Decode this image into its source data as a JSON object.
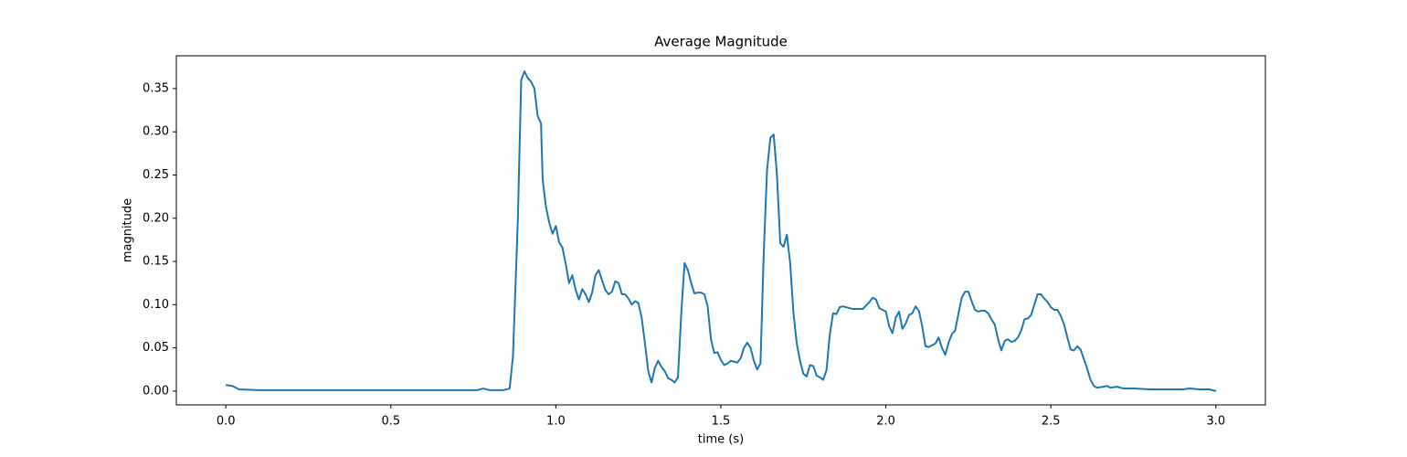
{
  "chart_data": {
    "type": "line",
    "title": "Average Magnitude",
    "x_label": "time (s)",
    "y_label": "magnitude",
    "color": "#1f77b4",
    "x": [
      0.0,
      0.02,
      0.04,
      0.1,
      0.3,
      0.5,
      0.76,
      0.78,
      0.8,
      0.84,
      0.86,
      0.87,
      0.885,
      0.895,
      0.905,
      0.915,
      0.925,
      0.935,
      0.945,
      0.955,
      0.96,
      0.97,
      0.98,
      0.99,
      1.0,
      1.01,
      1.02,
      1.03,
      1.04,
      1.05,
      1.06,
      1.07,
      1.08,
      1.09,
      1.1,
      1.11,
      1.12,
      1.13,
      1.14,
      1.15,
      1.16,
      1.17,
      1.18,
      1.19,
      1.2,
      1.21,
      1.22,
      1.23,
      1.24,
      1.25,
      1.26,
      1.27,
      1.28,
      1.29,
      1.3,
      1.31,
      1.32,
      1.33,
      1.34,
      1.35,
      1.36,
      1.37,
      1.38,
      1.39,
      1.4,
      1.41,
      1.42,
      1.43,
      1.44,
      1.45,
      1.46,
      1.47,
      1.48,
      1.49,
      1.5,
      1.51,
      1.52,
      1.53,
      1.54,
      1.55,
      1.56,
      1.57,
      1.58,
      1.59,
      1.6,
      1.61,
      1.62,
      1.63,
      1.64,
      1.65,
      1.66,
      1.67,
      1.68,
      1.69,
      1.7,
      1.71,
      1.72,
      1.73,
      1.74,
      1.75,
      1.76,
      1.77,
      1.78,
      1.79,
      1.8,
      1.81,
      1.82,
      1.83,
      1.84,
      1.85,
      1.86,
      1.87,
      1.9,
      1.93,
      1.95,
      1.96,
      1.97,
      1.98,
      2.0,
      2.01,
      2.02,
      2.03,
      2.04,
      2.05,
      2.06,
      2.07,
      2.08,
      2.09,
      2.1,
      2.11,
      2.12,
      2.13,
      2.15,
      2.16,
      2.17,
      2.18,
      2.19,
      2.2,
      2.21,
      2.22,
      2.23,
      2.24,
      2.25,
      2.26,
      2.27,
      2.28,
      2.29,
      2.3,
      2.31,
      2.32,
      2.33,
      2.34,
      2.35,
      2.36,
      2.37,
      2.38,
      2.39,
      2.4,
      2.41,
      2.42,
      2.43,
      2.44,
      2.45,
      2.46,
      2.47,
      2.48,
      2.49,
      2.5,
      2.51,
      2.52,
      2.53,
      2.54,
      2.55,
      2.56,
      2.57,
      2.58,
      2.59,
      2.6,
      2.61,
      2.62,
      2.63,
      2.64,
      2.66,
      2.67,
      2.68,
      2.7,
      2.72,
      2.75,
      2.8,
      2.9,
      2.92,
      2.95,
      2.98,
      3.0
    ],
    "values": [
      0.007,
      0.006,
      0.002,
      0.001,
      0.001,
      0.001,
      0.001,
      0.003,
      0.001,
      0.001,
      0.003,
      0.04,
      0.2,
      0.36,
      0.37,
      0.362,
      0.358,
      0.35,
      0.318,
      0.31,
      0.245,
      0.213,
      0.195,
      0.182,
      0.191,
      0.172,
      0.166,
      0.147,
      0.125,
      0.134,
      0.117,
      0.106,
      0.118,
      0.112,
      0.103,
      0.114,
      0.134,
      0.14,
      0.128,
      0.117,
      0.112,
      0.115,
      0.127,
      0.125,
      0.112,
      0.112,
      0.107,
      0.1,
      0.104,
      0.102,
      0.085,
      0.055,
      0.023,
      0.01,
      0.027,
      0.035,
      0.028,
      0.023,
      0.015,
      0.013,
      0.01,
      0.016,
      0.09,
      0.148,
      0.14,
      0.125,
      0.113,
      0.114,
      0.114,
      0.112,
      0.098,
      0.06,
      0.044,
      0.045,
      0.036,
      0.03,
      0.032,
      0.035,
      0.034,
      0.033,
      0.038,
      0.05,
      0.056,
      0.05,
      0.035,
      0.025,
      0.032,
      0.16,
      0.256,
      0.293,
      0.297,
      0.25,
      0.171,
      0.167,
      0.181,
      0.148,
      0.09,
      0.055,
      0.035,
      0.02,
      0.017,
      0.03,
      0.029,
      0.018,
      0.016,
      0.013,
      0.024,
      0.065,
      0.09,
      0.089,
      0.097,
      0.098,
      0.095,
      0.095,
      0.103,
      0.108,
      0.106,
      0.096,
      0.092,
      0.075,
      0.067,
      0.085,
      0.092,
      0.072,
      0.078,
      0.088,
      0.09,
      0.098,
      0.093,
      0.075,
      0.052,
      0.051,
      0.055,
      0.062,
      0.05,
      0.042,
      0.056,
      0.066,
      0.07,
      0.09,
      0.108,
      0.115,
      0.115,
      0.104,
      0.094,
      0.092,
      0.093,
      0.093,
      0.09,
      0.083,
      0.077,
      0.06,
      0.047,
      0.058,
      0.06,
      0.057,
      0.058,
      0.062,
      0.07,
      0.083,
      0.084,
      0.088,
      0.1,
      0.112,
      0.112,
      0.107,
      0.103,
      0.097,
      0.094,
      0.094,
      0.087,
      0.077,
      0.062,
      0.048,
      0.047,
      0.052,
      0.048,
      0.037,
      0.026,
      0.013,
      0.006,
      0.004,
      0.005,
      0.006,
      0.004,
      0.005,
      0.003,
      0.003,
      0.002,
      0.002,
      0.003,
      0.002,
      0.002,
      0.0
    ],
    "xlim": [
      -0.15,
      3.15
    ],
    "ylim": [
      -0.016,
      0.388
    ],
    "xticks": [
      {
        "value": 0,
        "label": "0.0"
      },
      0.5,
      {
        "value": 1,
        "label": "1.0"
      },
      1.5,
      {
        "value": 2,
        "label": "2.0"
      },
      2.5,
      {
        "value": 3,
        "label": "3.0"
      }
    ],
    "yticks": [
      {
        "value": 0,
        "label": "0.00"
      },
      {
        "value": 0.05,
        "label": "0.05"
      },
      {
        "value": 0.1,
        "label": "0.10"
      },
      {
        "value": 0.15,
        "label": "0.15"
      },
      {
        "value": 0.2,
        "label": "0.20"
      },
      {
        "value": 0.25,
        "label": "0.25"
      },
      {
        "value": 0.3,
        "label": "0.30"
      },
      {
        "value": 0.35,
        "label": "0.35"
      }
    ]
  }
}
